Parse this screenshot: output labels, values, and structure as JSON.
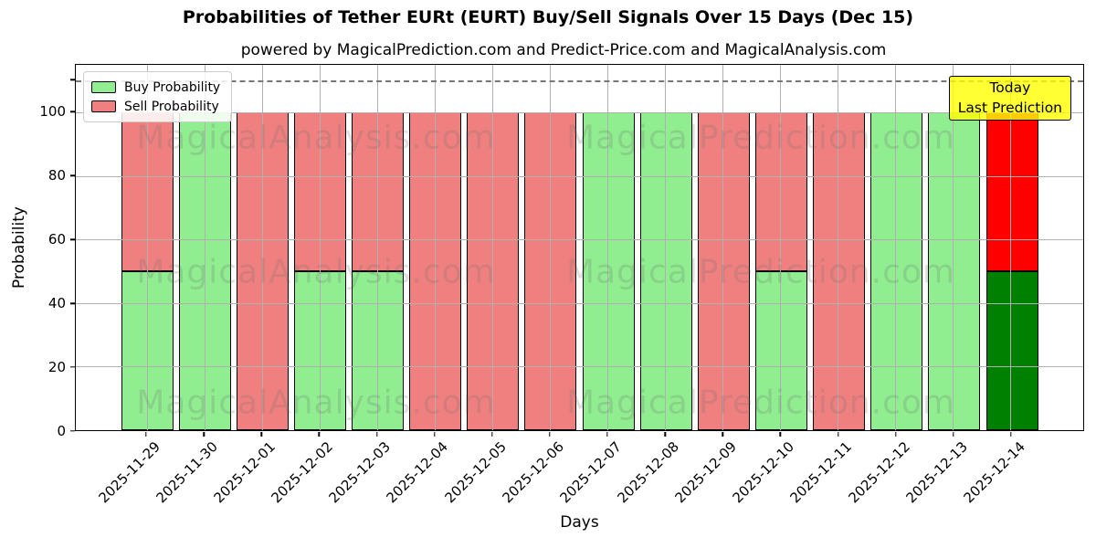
{
  "chart_data": {
    "type": "bar",
    "stacked": true,
    "title": "Probabilities of Tether EURt (EURT) Buy/Sell Signals Over 15 Days (Dec 15)",
    "subtitle": "powered by MagicalPrediction.com and Predict-Price.com and MagicalAnalysis.com",
    "xlabel": "Days",
    "ylabel": "Probability",
    "ylim": [
      0,
      115
    ],
    "yticks": [
      0,
      20,
      40,
      60,
      80,
      100
    ],
    "unlabeled_ytick": 110,
    "dashed_line_y": 110,
    "grid": true,
    "grid_color": "#b0b0b0",
    "legend_position": "upper left",
    "categories": [
      "2025-11-29",
      "2025-11-30",
      "2025-12-01",
      "2025-12-02",
      "2025-12-03",
      "2025-12-04",
      "2025-12-05",
      "2025-12-06",
      "2025-12-07",
      "2025-12-08",
      "2025-12-09",
      "2025-12-10",
      "2025-12-11",
      "2025-12-12",
      "2025-12-13",
      "2025-12-14"
    ],
    "series": [
      {
        "name": "Buy Probability",
        "color": "#90ee90",
        "values": [
          50,
          100,
          0,
          50,
          50,
          0,
          0,
          0,
          100,
          100,
          0,
          50,
          0,
          100,
          100,
          50
        ]
      },
      {
        "name": "Sell Probability",
        "color": "#f08080",
        "values": [
          50,
          0,
          100,
          50,
          50,
          100,
          100,
          100,
          0,
          0,
          100,
          50,
          100,
          0,
          0,
          50
        ]
      }
    ],
    "bar_edge_color": "#000000",
    "today_index": 15,
    "today_colors": {
      "buy": "#008000",
      "sell": "#ff0000"
    },
    "annotation": {
      "line1": "Today",
      "line2": "Last Prediction",
      "bg_color": "#ffff00"
    },
    "watermarks": {
      "left": "MagicalAnalysis.com",
      "right": "MagicalPrediction.com"
    }
  }
}
